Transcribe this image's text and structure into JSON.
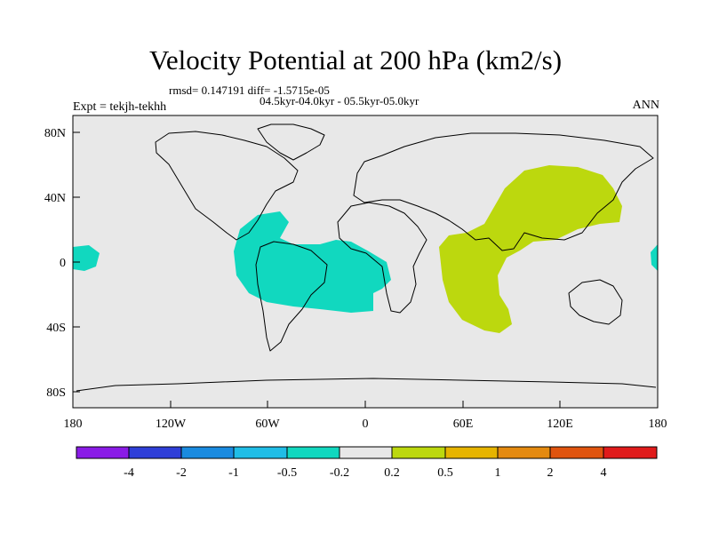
{
  "title": "Velocity Potential at 200 hPa (km2/s)",
  "stats": "rmsd= 0.147191 diff= -1.5715e-05",
  "period": "04.5kyr-04.0kyr - 05.5kyr-05.0kyr",
  "expt": "Expt = tekjh-tekhh",
  "season": "ANN",
  "lat_ticks": [
    "80N",
    "40N",
    "0",
    "40S",
    "80S"
  ],
  "lon_ticks": [
    "180",
    "120W",
    "60W",
    "0",
    "60E",
    "120E",
    "180"
  ],
  "colorbar": {
    "labels": [
      "-4",
      "-2",
      "-1",
      "-0.5",
      "-0.2",
      "0.2",
      "0.5",
      "1",
      "2",
      "4"
    ],
    "colors": [
      "#8a1be6",
      "#2f3fd8",
      "#1a8be0",
      "#20bde6",
      "#11d8bf",
      "#e8e8e8",
      "#bcd80e",
      "#e6b400",
      "#e48a10",
      "#e0540f",
      "#e01b1b"
    ]
  },
  "colors": {
    "ocean_background": "#e8e8e8",
    "negative_anomaly": "#11d8bf",
    "positive_anomaly": "#bcd80e"
  }
}
